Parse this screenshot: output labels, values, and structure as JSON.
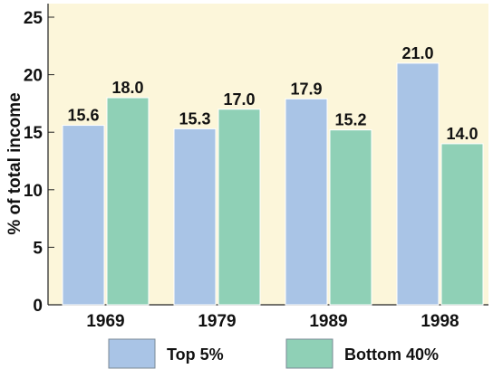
{
  "chart_data": {
    "type": "bar",
    "categories": [
      "1969",
      "1979",
      "1989",
      "1998"
    ],
    "series": [
      {
        "name": "Top 5%",
        "values": [
          15.6,
          15.3,
          17.9,
          21.0
        ],
        "labels": [
          "15.6",
          "15.3",
          "17.9",
          "21.0"
        ],
        "color": "#a9c4e6"
      },
      {
        "name": "Bottom 40%",
        "values": [
          18.0,
          17.0,
          15.2,
          14.0
        ],
        "labels": [
          "18.0",
          "17.0",
          "15.2",
          "14.0"
        ],
        "color": "#8fd0b6"
      }
    ],
    "title": "",
    "xlabel": "",
    "ylabel": "% of total income",
    "ylim": [
      0,
      25
    ],
    "yticks": [
      "0",
      "5",
      "10",
      "15",
      "20",
      "25"
    ],
    "grid": false,
    "plot_background": "#fcf6da",
    "legend_position": "bottom"
  }
}
